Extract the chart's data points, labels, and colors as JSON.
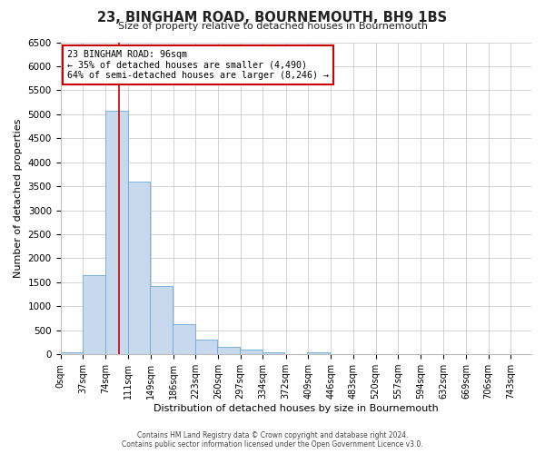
{
  "title": "23, BINGHAM ROAD, BOURNEMOUTH, BH9 1BS",
  "subtitle": "Size of property relative to detached houses in Bournemouth",
  "xlabel": "Distribution of detached houses by size in Bournemouth",
  "ylabel": "Number of detached properties",
  "bar_color": "#c8d9ee",
  "bar_edge_color": "#6aaad4",
  "background_color": "#ffffff",
  "grid_color": "#cccccc",
  "annotation_box_color": "#ffffff",
  "annotation_border_color": "#cc0000",
  "property_line_color": "#cc0000",
  "property_size": 96,
  "annotation_title": "23 BINGHAM ROAD: 96sqm",
  "annotation_line1": "← 35% of detached houses are smaller (4,490)",
  "annotation_line2": "64% of semi-detached houses are larger (8,246) →",
  "bin_left_edges": [
    0,
    37,
    74,
    111,
    148,
    185,
    222,
    259,
    296,
    333,
    370,
    407,
    444,
    481,
    518,
    555,
    592,
    629,
    666,
    703,
    740
  ],
  "bin_counts": [
    50,
    1650,
    5080,
    3600,
    1420,
    620,
    310,
    150,
    100,
    50,
    0,
    50,
    0,
    0,
    0,
    0,
    0,
    0,
    0,
    0,
    0
  ],
  "bin_width": 37,
  "ylim": [
    0,
    6500
  ],
  "xlim": [
    0,
    777
  ],
  "yticks": [
    0,
    500,
    1000,
    1500,
    2000,
    2500,
    3000,
    3500,
    4000,
    4500,
    5000,
    5500,
    6000,
    6500
  ],
  "tick_labels": [
    "0sqm",
    "37sqm",
    "74sqm",
    "111sqm",
    "149sqm",
    "186sqm",
    "223sqm",
    "260sqm",
    "297sqm",
    "334sqm",
    "372sqm",
    "409sqm",
    "446sqm",
    "483sqm",
    "520sqm",
    "557sqm",
    "594sqm",
    "632sqm",
    "669sqm",
    "706sqm",
    "743sqm"
  ],
  "tick_positions": [
    0,
    37,
    74,
    111,
    149,
    186,
    223,
    260,
    297,
    334,
    372,
    409,
    446,
    483,
    520,
    557,
    594,
    632,
    669,
    706,
    743
  ],
  "footer_line1": "Contains HM Land Registry data © Crown copyright and database right 2024.",
  "footer_line2": "Contains public sector information licensed under the Open Government Licence v3.0."
}
